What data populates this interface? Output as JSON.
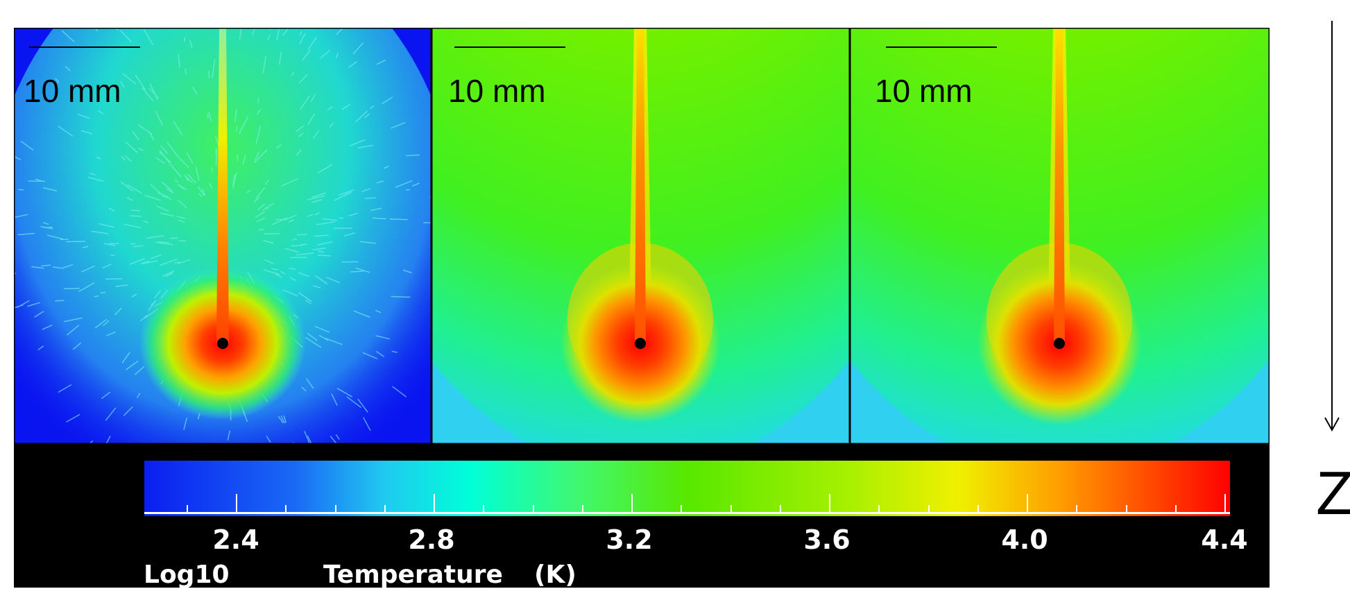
{
  "panels": [
    {
      "scale_label": "10 mm",
      "style": "noisy"
    },
    {
      "scale_label": "10 mm",
      "style": "smooth"
    },
    {
      "scale_label": "10 mm",
      "style": "smooth"
    }
  ],
  "colorbar": {
    "ticks": [
      "2.4",
      "2.8",
      "3.2",
      "3.6",
      "4.0",
      "4.4"
    ],
    "label_prefix": "Log10",
    "label_quantity": "Temperature",
    "label_unit": "(K)",
    "colors": [
      "#0a1ef0",
      "#20c8f0",
      "#00ffd8",
      "#58e800",
      "#f0f000",
      "#ffa000",
      "#ff0000"
    ]
  },
  "axis": {
    "label": "Z"
  }
}
